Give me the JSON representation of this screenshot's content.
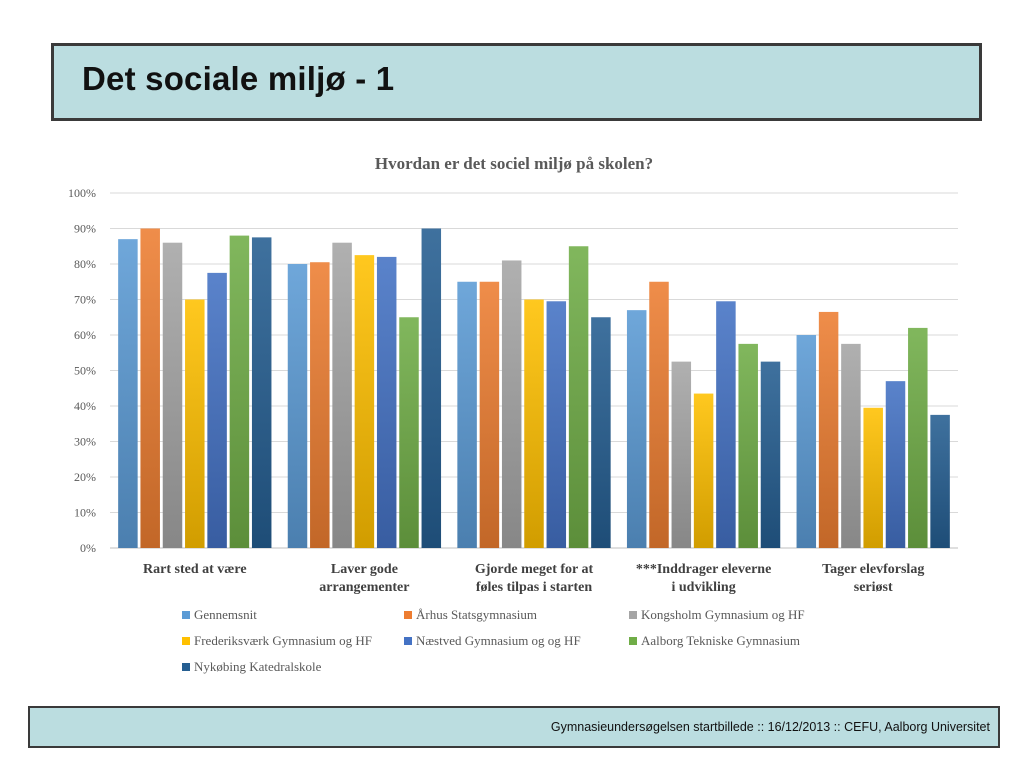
{
  "slide": {
    "title": "Det sociale miljø - 1",
    "footer": "Gymnasieundersøgelsen startbillede ::  16/12/2013  ::  CEFU, Aalborg Universitet"
  },
  "chart_data": {
    "type": "bar",
    "title": "Hvordan er det sociel miljø på skolen?",
    "ylim": [
      0,
      100
    ],
    "yticks": [
      "0%",
      "10%",
      "20%",
      "30%",
      "40%",
      "50%",
      "60%",
      "70%",
      "80%",
      "90%",
      "100%"
    ],
    "grid": true,
    "legend_position": "bottom",
    "categories": [
      [
        "Rart sted at være"
      ],
      [
        "Laver gode",
        "arrangementer"
      ],
      [
        "Gjorde meget for at",
        "føles tilpas i starten"
      ],
      [
        "***Inddrager eleverne",
        "i udvikling"
      ],
      [
        "Tager elevforslag",
        "seriøst"
      ]
    ],
    "series": [
      {
        "name": "Gennemsnit",
        "color": "#5b9bd5",
        "values": [
          87,
          80,
          75,
          67,
          60
        ]
      },
      {
        "name": "Århus Statsgymnasium",
        "color": "#ed7d31",
        "values": [
          90,
          80.5,
          75,
          75,
          66.5
        ]
      },
      {
        "name": "Kongsholm Gymnasium og HF",
        "color": "#a5a5a5",
        "values": [
          86,
          86,
          81,
          52.5,
          57.5
        ]
      },
      {
        "name": "Frederiksværk Gymnasium og HF",
        "color": "#ffc000",
        "values": [
          70,
          82.5,
          70,
          43.5,
          39.5
        ]
      },
      {
        "name": "Næstved Gymnasium og og HF",
        "color": "#4472c4",
        "values": [
          77.5,
          82,
          69.5,
          69.5,
          47
        ]
      },
      {
        "name": "Aalborg Tekniske Gymnasium",
        "color": "#70ad47",
        "values": [
          88,
          65,
          85,
          57.5,
          62
        ]
      },
      {
        "name": "Nykøbing Katedralskole",
        "color": "#255e91",
        "values": [
          87.5,
          90,
          65,
          52.5,
          37.5
        ]
      }
    ]
  }
}
